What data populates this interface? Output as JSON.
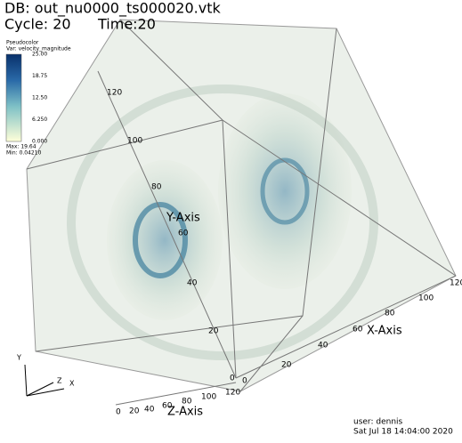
{
  "header": {
    "db": "DB: out_nu0000_ts000020.vtk",
    "cycle": "Cycle: 20",
    "time": "Time:20"
  },
  "legend": {
    "plot": "Pseudocolor",
    "variable": "Var: velocity_magnitude",
    "ticks": [
      "25.00",
      "18.75",
      "12.50",
      "6.250",
      "0.000"
    ],
    "max": "Max: 19.64",
    "min": "Min: 0.04210"
  },
  "axes": {
    "y": {
      "label": "Y-Axis",
      "ticks": [
        120,
        100,
        80,
        60,
        40,
        20,
        0
      ]
    },
    "x": {
      "label": "X-Axis",
      "ticks": [
        0,
        20,
        40,
        60,
        80,
        100,
        120
      ]
    },
    "z": {
      "label": "Z-Axis",
      "ticks": [
        0,
        20,
        40,
        60,
        80,
        100,
        120
      ]
    }
  },
  "triad": {
    "y": "Y",
    "z": "Z",
    "x": "X"
  },
  "footer": {
    "user": "user: dennis",
    "date": "Sat Jul 18 14:04:00 2020"
  }
}
